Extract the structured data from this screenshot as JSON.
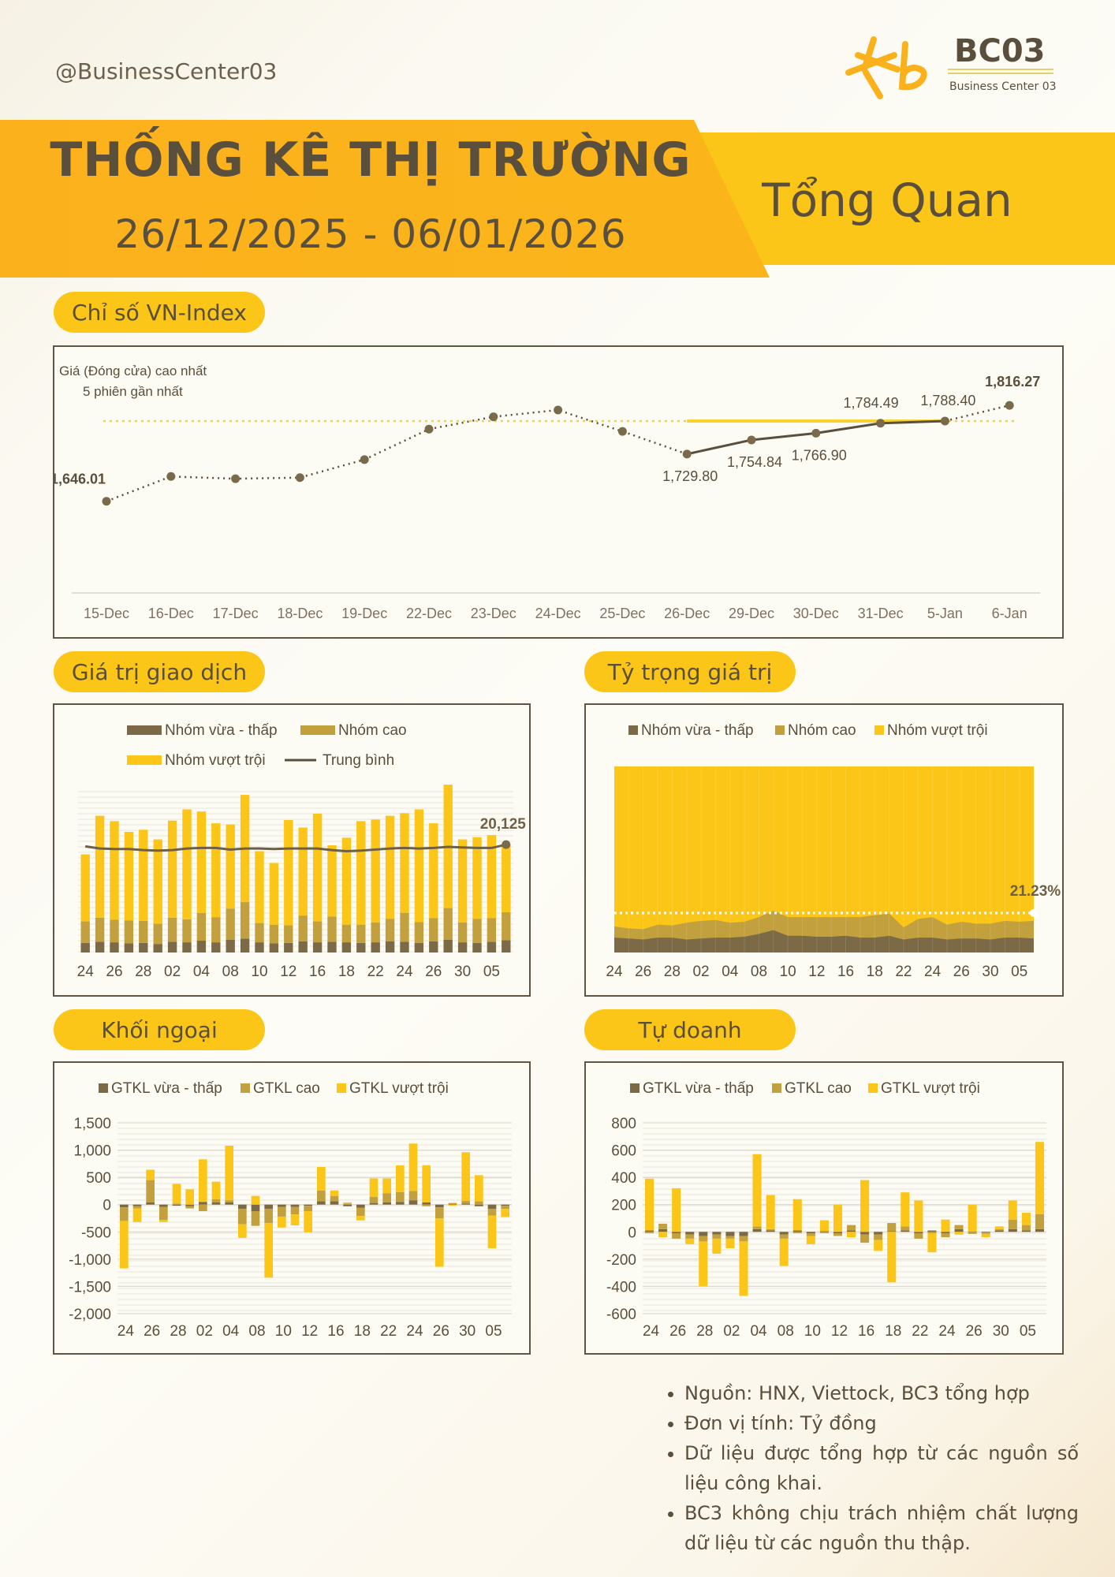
{
  "header": {
    "handle": "@BusinessCenter03",
    "logo_text": "BC03",
    "logo_sub": "Business Center 03",
    "title": "THỐNG KÊ THỊ TRƯỜNG",
    "dates": "26/12/2025 - 06/01/2026",
    "subtitle": "Tổng Quan"
  },
  "colors": {
    "dark": "#5a4e3c",
    "low": "#7c6a46",
    "high": "#c2a03e",
    "top": "#fbc617",
    "orange": "#fbb11c"
  },
  "sections": {
    "vnindex": "Chỉ số VN-Index",
    "value": "Giá trị giao dịch",
    "share": "Tỷ trọng giá trị",
    "foreign": "Khối ngoại",
    "prop": "Tự doanh"
  },
  "notes": [
    "Nguồn: HNX, Viettock, BC3 tổng hợp",
    "Đơn vị tính: Tỷ đồng",
    "Dữ liệu được tổng hợp từ các nguồn số liệu công khai.",
    "BC3 không chịu trách nhiệm chất lượng dữ liệu từ các nguồn thu thập."
  ],
  "chart_data": [
    {
      "id": "vnindex",
      "type": "line",
      "categories": [
        "15-Dec",
        "16-Dec",
        "17-Dec",
        "18-Dec",
        "19-Dec",
        "22-Dec",
        "23-Dec",
        "24-Dec",
        "25-Dec",
        "26-Dec",
        "29-Dec",
        "30-Dec",
        "31-Dec",
        "5-Jan",
        "6-Jan"
      ],
      "values": [
        1646.01,
        1690,
        1686,
        1688,
        1720,
        1774,
        1796,
        1808,
        1770,
        1729.8,
        1754.84,
        1766.9,
        1784.49,
        1788.4,
        1816.27
      ],
      "labels": [
        "1,646.01",
        "",
        "",
        "",
        "",
        "",
        "",
        "",
        "",
        "1,729.80",
        "1,754.84",
        "1,766.90",
        "1,784.49",
        "1,788.40",
        "1,816.27"
      ],
      "annotation": "Giá (Đóng cửa) cao nhất\n5 phiên gần nhất",
      "reference_line": 1788.4,
      "ylim": [
        1500,
        1850
      ]
    },
    {
      "id": "value",
      "type": "bar",
      "stacked": true,
      "categories": [
        "24",
        "25",
        "26",
        "27",
        "28",
        "01",
        "02",
        "03",
        "04",
        "05",
        "08",
        "09",
        "10",
        "11",
        "12",
        "15",
        "16",
        "17",
        "18",
        "19",
        "22",
        "23",
        "24",
        "25",
        "26",
        "29",
        "30",
        "31",
        "05",
        "06"
      ],
      "tick_labels": [
        "24",
        "26",
        "28",
        "02",
        "04",
        "08",
        "10",
        "12",
        "16",
        "18",
        "22",
        "24",
        "26",
        "30",
        "05"
      ],
      "series": [
        {
          "name": "Nhóm vừa - thấp",
          "values": [
            1800,
            2000,
            1900,
            1700,
            1800,
            1600,
            2000,
            1900,
            2200,
            1900,
            2400,
            2600,
            1900,
            1700,
            1800,
            2100,
            1900,
            2000,
            1900,
            1800,
            1900,
            2100,
            2000,
            1800,
            2100,
            2400,
            1900,
            1800,
            2000,
            2300
          ]
        },
        {
          "name": "Nhóm cao",
          "values": [
            4000,
            4500,
            4200,
            4300,
            4100,
            3800,
            4500,
            4300,
            5200,
            4700,
            5800,
            6800,
            3600,
            3500,
            3300,
            4800,
            3900,
            4700,
            3300,
            3400,
            3700,
            4200,
            5400,
            3900,
            4300,
            5900,
            3700,
            4500,
            4400,
            5200
          ]
        },
        {
          "name": "Nhóm vượt trội",
          "values": [
            12500,
            19000,
            18400,
            16500,
            17000,
            15700,
            18100,
            20500,
            18900,
            17500,
            15700,
            20000,
            13400,
            11500,
            19600,
            16400,
            20100,
            13300,
            16200,
            19300,
            19200,
            19200,
            18600,
            21000,
            17700,
            23000,
            15500,
            15200,
            15500,
            12600
          ]
        }
      ],
      "line": {
        "name": "Trung bình",
        "values": [
          19800,
          19400,
          19300,
          19300,
          19100,
          19000,
          19100,
          19400,
          19500,
          19500,
          19200,
          19400,
          19400,
          19300,
          19400,
          19400,
          19400,
          19100,
          18900,
          19000,
          19200,
          19400,
          19500,
          19400,
          19500,
          19700,
          19600,
          19500,
          19500,
          20125
        ]
      },
      "last_label": "20,125",
      "ylim": [
        0,
        30000
      ]
    },
    {
      "id": "share",
      "type": "area",
      "stacked": true,
      "categories": [
        "24",
        "25",
        "26",
        "27",
        "28",
        "01",
        "02",
        "03",
        "04",
        "05",
        "08",
        "09",
        "10",
        "11",
        "12",
        "15",
        "16",
        "17",
        "18",
        "19",
        "22",
        "23",
        "24",
        "25",
        "26",
        "29",
        "30",
        "31",
        "05",
        "06"
      ],
      "tick_labels": [
        "24",
        "26",
        "28",
        "02",
        "04",
        "08",
        "10",
        "12",
        "16",
        "18",
        "22",
        "24",
        "26",
        "30",
        "05"
      ],
      "series": [
        {
          "name": "Nhóm vừa - thấp",
          "values": [
            8,
            7.5,
            7,
            8,
            8,
            7,
            7.5,
            8,
            8,
            8.5,
            10,
            12,
            9,
            9,
            8.5,
            8.5,
            9,
            8,
            8,
            9,
            7,
            8,
            8,
            7,
            7.5,
            7.5,
            7,
            8,
            8,
            7.5
          ]
        },
        {
          "name": "Nhóm cao",
          "values": [
            6,
            5.5,
            5.5,
            7,
            6.5,
            9,
            9.5,
            9.5,
            8,
            8,
            9,
            10.5,
            10,
            10,
            10.5,
            10.5,
            10,
            11,
            12,
            12,
            6.5,
            10,
            11,
            8,
            9,
            8,
            8.5,
            9,
            8.5,
            9.5
          ]
        },
        {
          "name": "Nhóm vượt trội",
          "values": [
            86,
            87,
            87.5,
            85,
            85.5,
            84,
            83,
            82.5,
            84,
            83.5,
            81,
            77.5,
            81,
            81,
            81,
            81,
            81,
            81,
            80,
            79,
            86.5,
            82,
            81,
            85,
            83.5,
            84.5,
            84.5,
            83,
            83.5,
            83
          ]
        }
      ],
      "reference_line": 21.23,
      "last_label": "21.23%",
      "ylim": [
        0,
        100
      ]
    },
    {
      "id": "foreign",
      "type": "bar",
      "stacked": true,
      "categories": [
        "24",
        "25",
        "26",
        "27",
        "28",
        "01",
        "02",
        "03",
        "04",
        "05",
        "08",
        "09",
        "10",
        "11",
        "12",
        "15",
        "16",
        "17",
        "18",
        "19",
        "22",
        "23",
        "24",
        "25",
        "26",
        "29",
        "30",
        "31",
        "05",
        "06"
      ],
      "tick_labels": [
        "24",
        "26",
        "28",
        "02",
        "04",
        "08",
        "10",
        "12",
        "16",
        "18",
        "22",
        "24",
        "26",
        "30",
        "05"
      ],
      "series": [
        {
          "name": "GTKL vừa - thấp",
          "values": [
            -50,
            -30,
            40,
            -40,
            -20,
            -30,
            50,
            40,
            40,
            -80,
            -120,
            -80,
            -40,
            -40,
            -20,
            60,
            60,
            -30,
            -60,
            30,
            40,
            50,
            80,
            40,
            -50,
            10,
            20,
            -30,
            -80,
            -20
          ]
        },
        {
          "name": "GTKL cao",
          "values": [
            -250,
            -40,
            410,
            -240,
            20,
            -40,
            -120,
            60,
            40,
            -280,
            -270,
            -260,
            -180,
            -140,
            -100,
            200,
            100,
            20,
            -150,
            110,
            170,
            180,
            170,
            -30,
            -200,
            20,
            50,
            60,
            -120,
            -60
          ]
        },
        {
          "name": "GTKL vượt trội",
          "values": [
            -870,
            -250,
            190,
            -40,
            360,
            280,
            780,
            320,
            1000,
            -250,
            160,
            -1000,
            -200,
            -200,
            -390,
            430,
            100,
            20,
            -80,
            340,
            270,
            490,
            870,
            680,
            -890,
            -20,
            890,
            480,
            -600,
            -150
          ]
        }
      ],
      "ylim": [
        -2000,
        1500
      ]
    },
    {
      "id": "prop",
      "type": "bar",
      "stacked": true,
      "categories": [
        "24",
        "25",
        "26",
        "27",
        "28",
        "01",
        "02",
        "03",
        "04",
        "05",
        "08",
        "09",
        "10",
        "11",
        "12",
        "15",
        "16",
        "17",
        "18",
        "19",
        "22",
        "23",
        "24",
        "25",
        "26",
        "29",
        "30",
        "31",
        "05",
        "06"
      ],
      "tick_labels": [
        "24",
        "26",
        "28",
        "02",
        "04",
        "08",
        "10",
        "12",
        "16",
        "18",
        "22",
        "24",
        "26",
        "30",
        "05"
      ],
      "series": [
        {
          "name": "GTKL vừa - thấp",
          "values": [
            10,
            20,
            -10,
            -20,
            -30,
            -20,
            -30,
            -30,
            20,
            10,
            -20,
            10,
            -10,
            5,
            -10,
            10,
            -20,
            -20,
            5,
            10,
            -10,
            10,
            -10,
            20,
            -5,
            -5,
            10,
            20,
            10,
            20
          ]
        },
        {
          "name": "GTKL cao",
          "values": [
            -10,
            40,
            -40,
            -30,
            -40,
            -30,
            -20,
            -40,
            20,
            10,
            -30,
            -10,
            -20,
            -10,
            -20,
            40,
            -60,
            -40,
            60,
            30,
            -40,
            -10,
            -30,
            30,
            -10,
            -10,
            10,
            70,
            40,
            110
          ]
        },
        {
          "name": "GTKL vượt trội",
          "values": [
            380,
            -40,
            320,
            -40,
            -330,
            -110,
            -70,
            -400,
            530,
            250,
            -200,
            230,
            -60,
            80,
            200,
            -40,
            380,
            -80,
            -370,
            250,
            230,
            -140,
            90,
            -20,
            200,
            -25,
            20,
            140,
            90,
            530
          ]
        }
      ],
      "ylim": [
        -600,
        800
      ]
    }
  ]
}
